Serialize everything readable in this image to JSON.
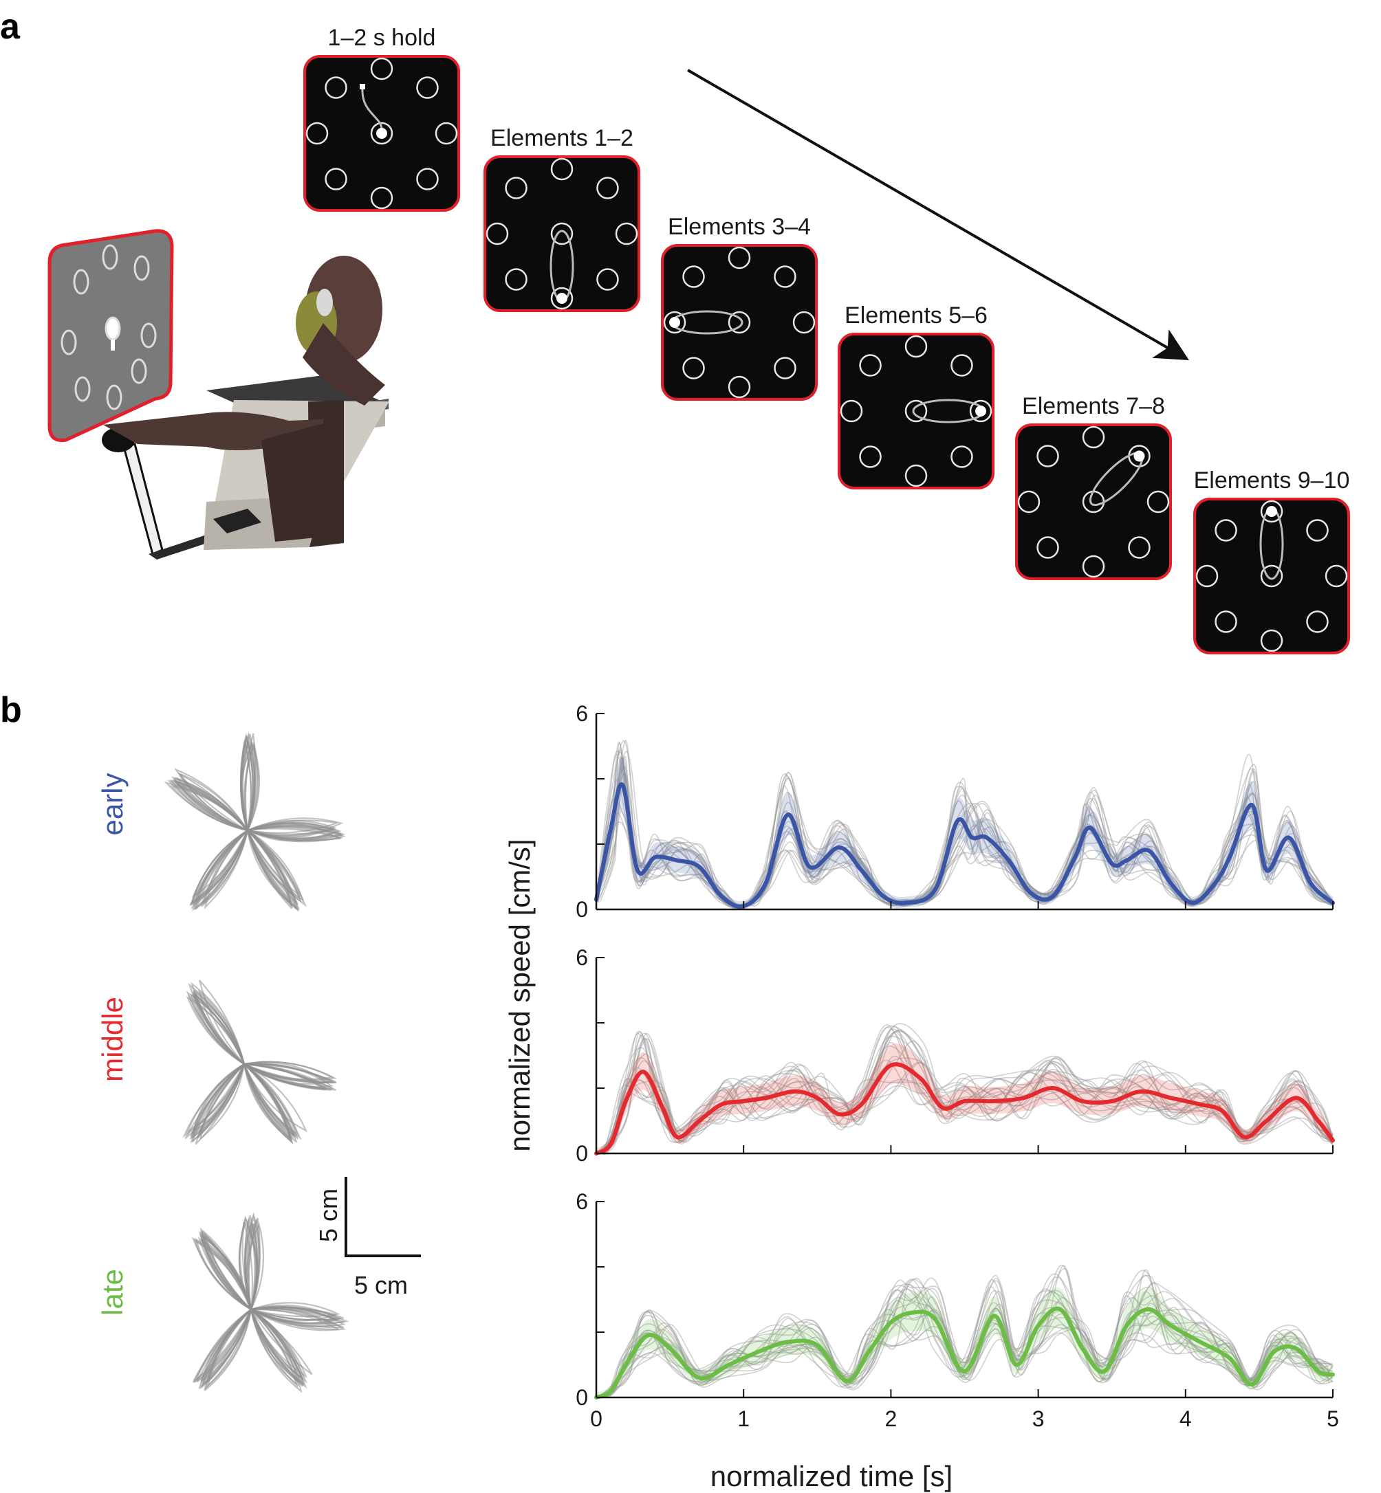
{
  "panel_a": {
    "label": "a",
    "screens": [
      {
        "caption": "1–2 s hold",
        "move": "hold"
      },
      {
        "caption": "Elements 1–2",
        "move": [
          0,
          5
        ]
      },
      {
        "caption": "Elements 3–4",
        "move": [
          0,
          7
        ]
      },
      {
        "caption": "Elements 5–6",
        "move": [
          0,
          3
        ]
      },
      {
        "caption": "Elements 7–8",
        "move": [
          0,
          2
        ]
      },
      {
        "caption": "Elements 9–10",
        "move": [
          0,
          1
        ]
      }
    ],
    "colors": {
      "screen_bg": "#0b0b0b",
      "screen_border": "#e0202a",
      "target": "#e6e6e6",
      "path": "#bbbbbb"
    }
  },
  "panel_b": {
    "label": "b",
    "phases": [
      {
        "name": "early",
        "color": "#3a55a6",
        "arms_deg": [
          90,
          0,
          -55,
          -125,
          145
        ]
      },
      {
        "name": "middle",
        "color": "#e52a2f",
        "arms_deg": [
          125,
          -12,
          -55,
          -125
        ]
      },
      {
        "name": "late",
        "color": "#6bbd45",
        "arms_deg": [
          90,
          -8,
          -55,
          -125,
          125
        ]
      }
    ],
    "scale_bar": {
      "vertical": "5 cm",
      "horizontal": "5 cm"
    }
  },
  "chart_data": [
    {
      "type": "line",
      "title": "",
      "series": [
        {
          "name": "early",
          "color": "#3a55a6",
          "x": [
            0,
            0.1,
            0.18,
            0.28,
            0.4,
            0.55,
            0.7,
            0.85,
            1.0,
            1.15,
            1.3,
            1.45,
            1.65,
            1.8,
            1.95,
            2.1,
            2.3,
            2.45,
            2.55,
            2.65,
            2.8,
            2.95,
            3.1,
            3.25,
            3.35,
            3.5,
            3.6,
            3.75,
            3.9,
            4.05,
            4.2,
            4.3,
            4.45,
            4.55,
            4.7,
            4.85,
            5.0
          ],
          "y": [
            0.3,
            2.5,
            3.8,
            1.2,
            1.6,
            1.5,
            1.3,
            0.4,
            0.1,
            0.8,
            2.9,
            1.3,
            1.9,
            1.2,
            0.4,
            0.2,
            0.6,
            2.7,
            2.2,
            2.2,
            1.5,
            0.5,
            0.4,
            1.6,
            2.5,
            1.4,
            1.5,
            1.8,
            0.8,
            0.2,
            0.8,
            1.6,
            3.2,
            1.2,
            2.2,
            0.8,
            0.2
          ]
        }
      ],
      "xlim": [
        0,
        5
      ],
      "ylim": [
        0,
        6
      ],
      "yticks": [
        0,
        6
      ],
      "yticklabels": [
        "0",
        "6"
      ]
    },
    {
      "type": "line",
      "title": "",
      "series": [
        {
          "name": "middle",
          "color": "#e52a2f",
          "x": [
            0,
            0.1,
            0.2,
            0.32,
            0.45,
            0.55,
            0.7,
            0.85,
            1.0,
            1.15,
            1.35,
            1.5,
            1.65,
            1.8,
            2.0,
            2.2,
            2.35,
            2.5,
            2.7,
            2.9,
            3.1,
            3.3,
            3.5,
            3.7,
            3.9,
            4.1,
            4.25,
            4.4,
            4.55,
            4.75,
            4.9,
            5.0
          ],
          "y": [
            0,
            0.3,
            1.6,
            2.5,
            1.4,
            0.5,
            1.0,
            1.5,
            1.6,
            1.7,
            1.9,
            1.7,
            1.2,
            1.5,
            2.7,
            2.3,
            1.4,
            1.6,
            1.6,
            1.7,
            2.0,
            1.6,
            1.6,
            1.9,
            1.7,
            1.5,
            1.3,
            0.5,
            1.0,
            1.7,
            1.0,
            0.4
          ]
        }
      ],
      "xlim": [
        0,
        5
      ],
      "ylim": [
        0,
        6
      ],
      "yticks": [
        0,
        6
      ],
      "yticklabels": [
        "0",
        "6"
      ],
      "ylabel": "normalized speed [cm/s]"
    },
    {
      "type": "line",
      "title": "",
      "series": [
        {
          "name": "late",
          "color": "#6bbd45",
          "x": [
            0,
            0.1,
            0.2,
            0.35,
            0.5,
            0.7,
            0.9,
            1.1,
            1.3,
            1.5,
            1.7,
            1.85,
            2.0,
            2.15,
            2.3,
            2.5,
            2.7,
            2.85,
            3.0,
            3.15,
            3.3,
            3.45,
            3.6,
            3.75,
            3.9,
            4.1,
            4.3,
            4.45,
            4.6,
            4.75,
            4.9,
            5.0
          ],
          "y": [
            0,
            0.2,
            1.0,
            1.9,
            1.5,
            0.6,
            1.0,
            1.4,
            1.7,
            1.6,
            0.5,
            1.4,
            2.3,
            2.6,
            2.4,
            0.8,
            2.5,
            1.0,
            2.2,
            2.7,
            1.5,
            0.8,
            2.2,
            2.7,
            2.2,
            1.7,
            1.2,
            0.4,
            1.4,
            1.5,
            0.8,
            0.7
          ]
        }
      ],
      "xlim": [
        0,
        5
      ],
      "ylim": [
        0,
        6
      ],
      "xticks": [
        0,
        1,
        2,
        3,
        4,
        5
      ],
      "xticklabels": [
        "0",
        "1",
        "2",
        "3",
        "4",
        "5"
      ],
      "yticks": [
        0,
        6
      ],
      "yticklabels": [
        "0",
        "6"
      ],
      "xlabel": "normalized time [s]"
    }
  ]
}
